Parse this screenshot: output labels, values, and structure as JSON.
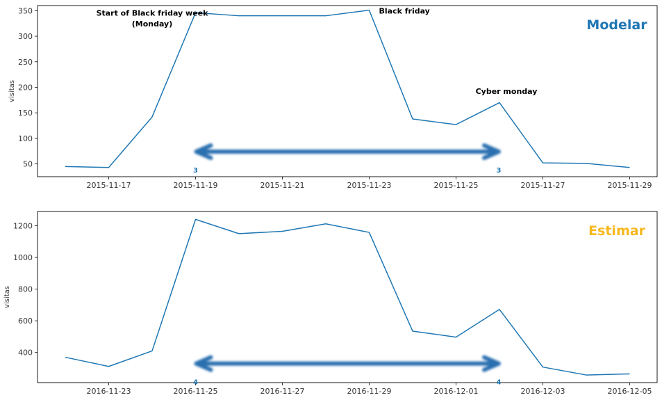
{
  "colors": {
    "line": "#1f77b4",
    "arrow": "#2c6fb0",
    "modelar": "#1f77b4",
    "estimar": "#f7b81e",
    "axis": "#000000",
    "tick_text": "#333333",
    "annotation": "#000000"
  },
  "chart_data": [
    {
      "type": "line",
      "ylabel": "visitas",
      "panel_label": "Modelar",
      "ylim": [
        25,
        360
      ],
      "y_ticks": [
        50,
        100,
        150,
        200,
        250,
        300,
        350
      ],
      "x_start_date": "2015-11-16",
      "x": [
        "2015-11-16",
        "2015-11-17",
        "2015-11-18",
        "2015-11-19",
        "2015-11-20",
        "2015-11-21",
        "2015-11-22",
        "2015-11-23",
        "2015-11-24",
        "2015-11-25",
        "2015-11-26",
        "2015-11-27",
        "2015-11-28",
        "2015-11-29"
      ],
      "values": [
        45,
        43,
        142,
        346,
        340,
        340,
        340,
        351,
        138,
        127,
        170,
        52,
        51,
        43
      ],
      "x_tick_labels": [
        "2015-11-17",
        "2015-11-19",
        "2015-11-21",
        "2015-11-23",
        "2015-11-25",
        "2015-11-27",
        "2015-11-29"
      ],
      "annotations": [
        {
          "text": "Start of Black friday week",
          "x": "2015-11-18",
          "y": 340
        },
        {
          "text": "(Monday)",
          "x": "2015-11-18",
          "y": 319
        },
        {
          "text": "Black friday",
          "x": "2015-11-24",
          "y": 344
        },
        {
          "text": "Cyber monday",
          "x": "2015-11-26",
          "y": 187
        }
      ],
      "arrow": {
        "from": "2015-11-19",
        "to": "2015-11-26",
        "y": 74,
        "left_label": "3",
        "right_label": "3"
      }
    },
    {
      "type": "line",
      "ylabel": "visitas",
      "panel_label": "Estimar",
      "ylim": [
        210,
        1290
      ],
      "y_ticks": [
        400,
        600,
        800,
        1000,
        1200
      ],
      "x": [
        "2016-11-22",
        "2016-11-23",
        "2016-11-24",
        "2016-11-25",
        "2016-11-26",
        "2016-11-27",
        "2016-11-28",
        "2016-11-29",
        "2016-11-30",
        "2016-12-01",
        "2016-12-02",
        "2016-12-03",
        "2016-12-04",
        "2016-12-05"
      ],
      "values": [
        370,
        312,
        410,
        1240,
        1150,
        1165,
        1212,
        1158,
        535,
        497,
        672,
        308,
        258,
        265
      ],
      "x_tick_labels": [
        "2016-11-23",
        "2016-11-25",
        "2016-11-27",
        "2016-11-29",
        "2016-12-01",
        "2016-12-03",
        "2016-12-05"
      ],
      "arrow": {
        "from": "2016-11-25",
        "to": "2016-12-02",
        "y": 330,
        "left_label": "4",
        "right_label": "4"
      }
    }
  ]
}
